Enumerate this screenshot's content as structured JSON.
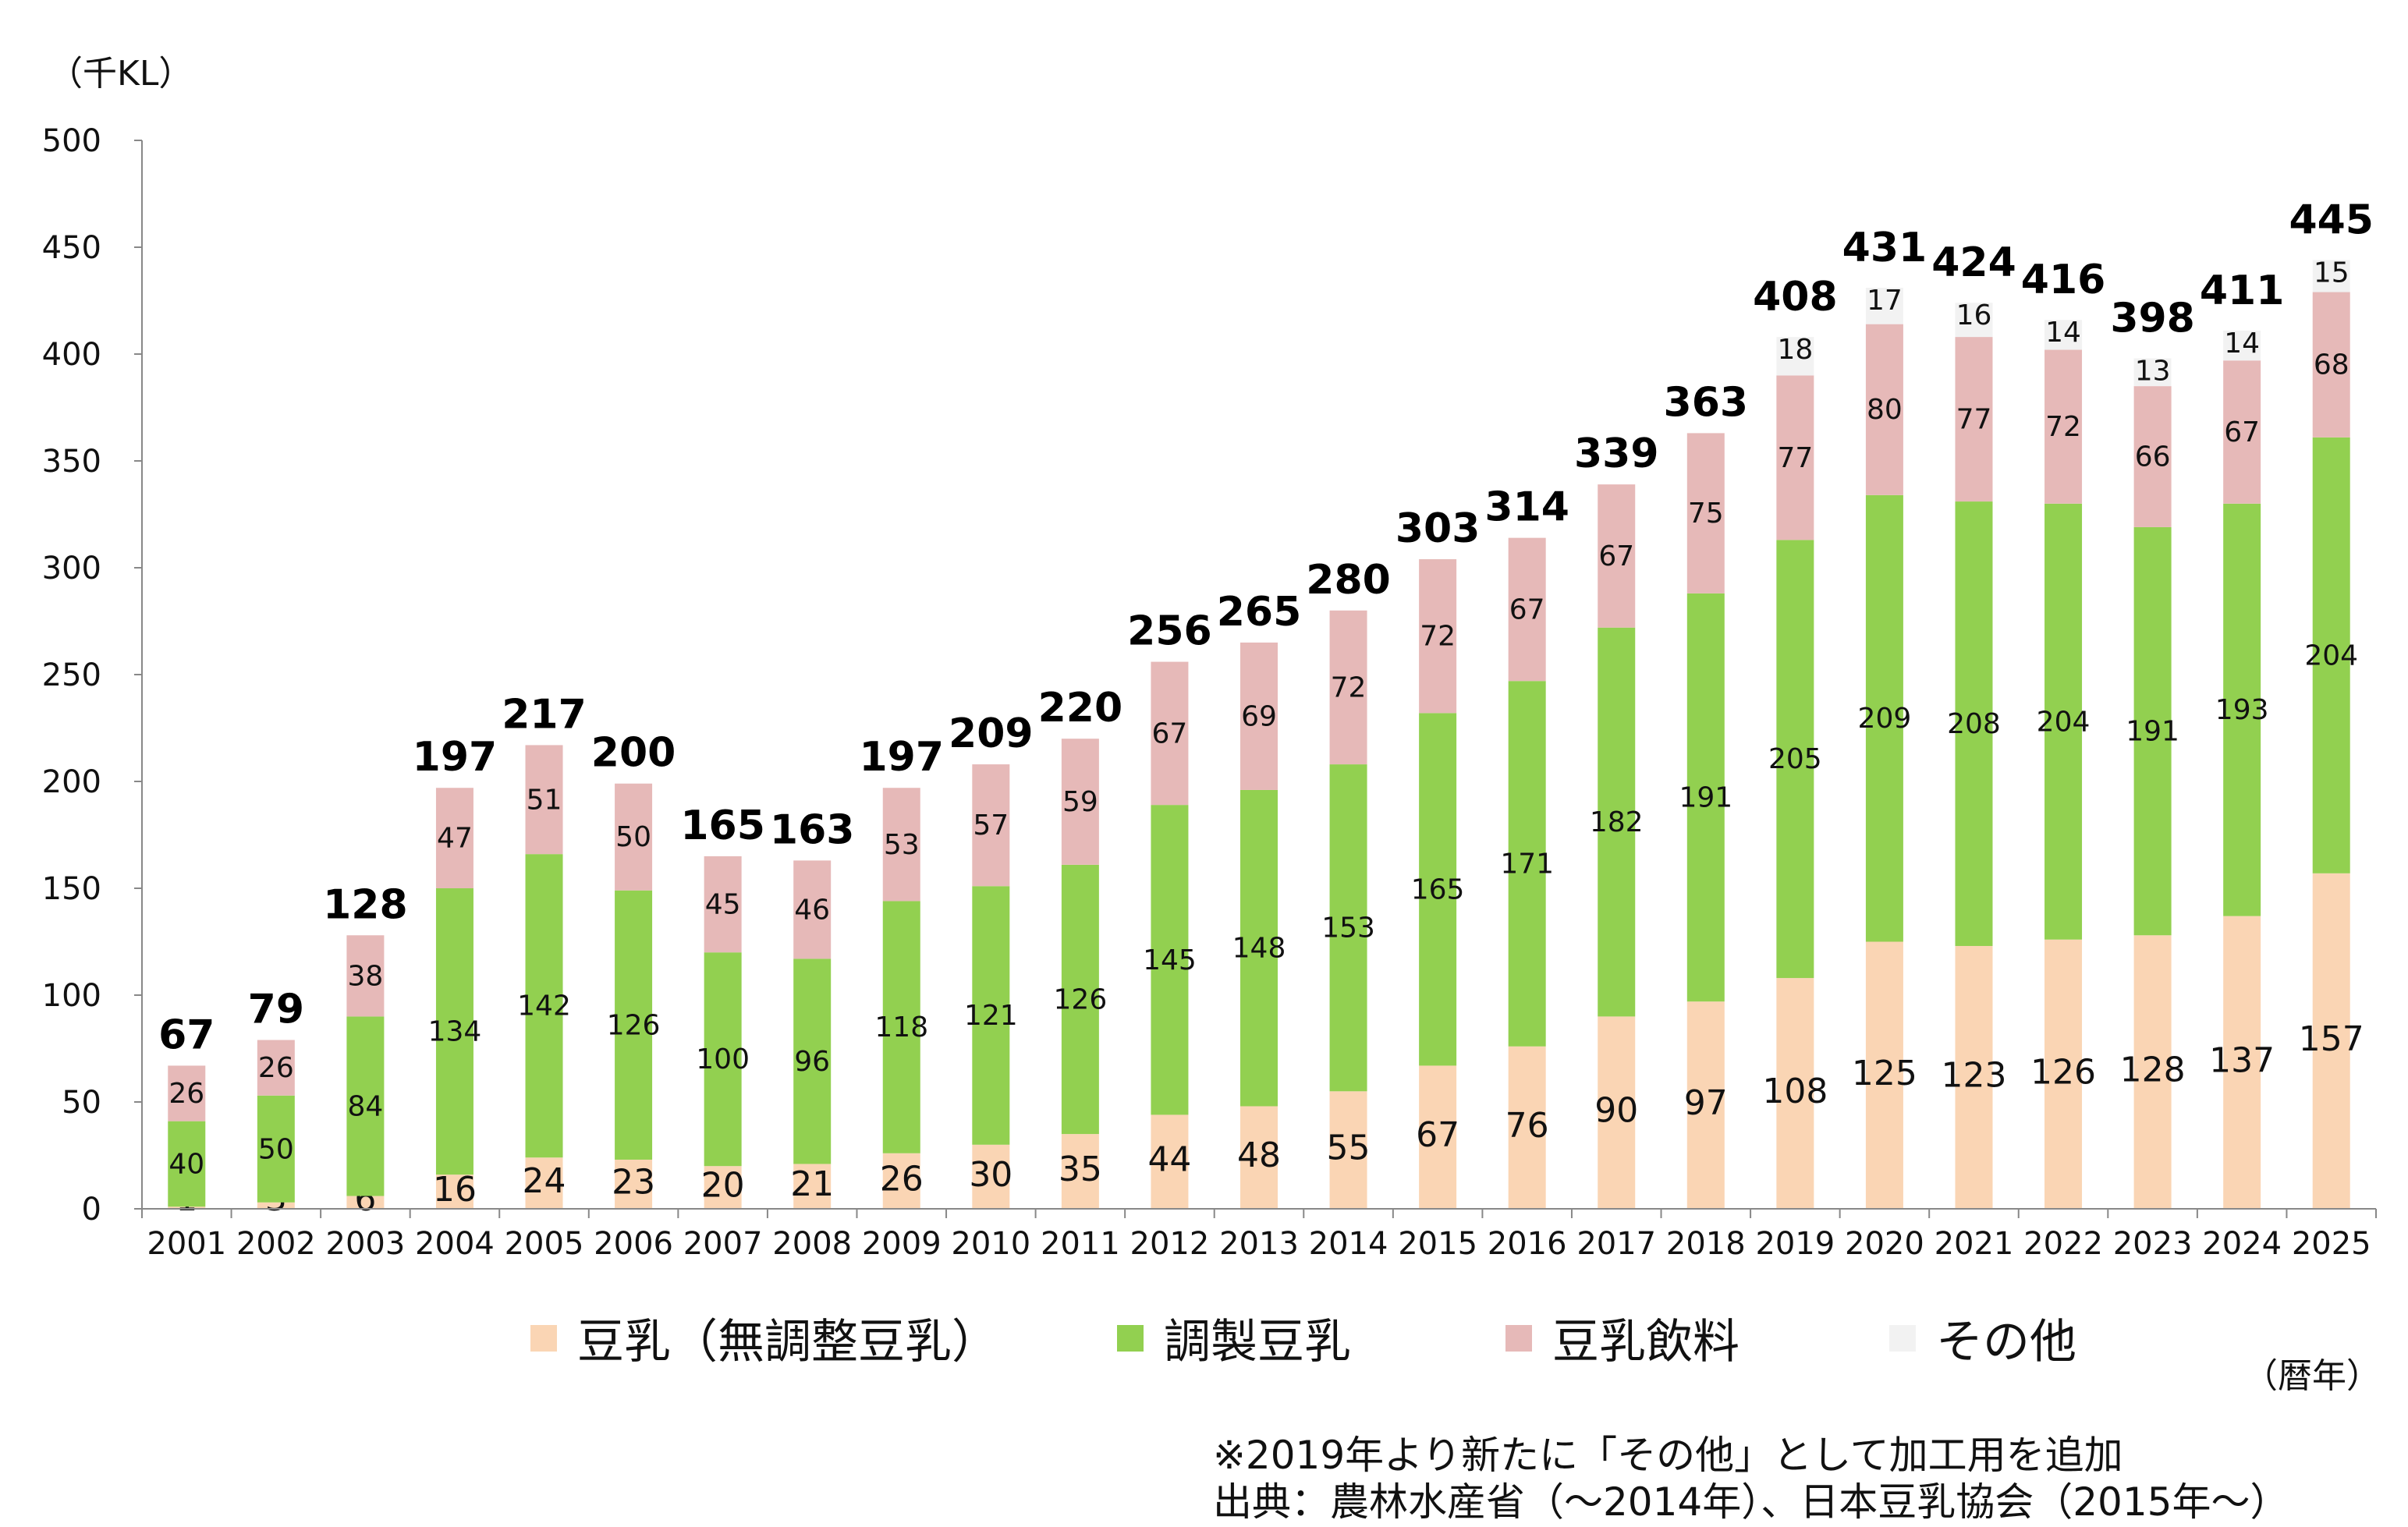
{
  "unit_label": "（千KL）",
  "x_unit_label": "（暦年）",
  "notes": [
    "※2019年より新たに「その他」として加工用を追加",
    "出典：農林水産省（～2014年）、日本豆乳協会（2015年～）"
  ],
  "chart_data": {
    "type": "bar",
    "stacked": true,
    "title": "",
    "xlabel": "",
    "ylabel": "",
    "ylim": [
      0,
      500
    ],
    "yticks": [
      0,
      50,
      100,
      150,
      200,
      250,
      300,
      350,
      400,
      450,
      500
    ],
    "grid": false,
    "legend_position": "bottom",
    "categories": [
      "2001",
      "2002",
      "2003",
      "2004",
      "2005",
      "2006",
      "2007",
      "2008",
      "2009",
      "2010",
      "2011",
      "2012",
      "2013",
      "2014",
      "2015",
      "2016",
      "2017",
      "2018",
      "2019",
      "2020",
      "2021",
      "2022",
      "2023",
      "2024",
      "2025"
    ],
    "series": [
      {
        "name": "豆乳（無調整豆乳）",
        "color": "#FAD5B4",
        "values": [
          1,
          3,
          6,
          16,
          24,
          23,
          20,
          21,
          26,
          30,
          35,
          44,
          48,
          55,
          67,
          76,
          90,
          97,
          108,
          125,
          123,
          126,
          128,
          137,
          157
        ]
      },
      {
        "name": "調製豆乳",
        "color": "#92D050",
        "values": [
          40,
          50,
          84,
          134,
          142,
          126,
          100,
          96,
          118,
          121,
          126,
          145,
          148,
          153,
          165,
          171,
          182,
          191,
          205,
          209,
          208,
          204,
          191,
          193,
          204
        ]
      },
      {
        "name": "豆乳飲料",
        "color": "#E6B9B8",
        "values": [
          26,
          26,
          38,
          47,
          51,
          50,
          45,
          46,
          53,
          57,
          59,
          67,
          69,
          72,
          72,
          67,
          67,
          75,
          77,
          80,
          77,
          72,
          66,
          67,
          68
        ]
      },
      {
        "name": "その他",
        "color": "#F2F2F2",
        "values": [
          null,
          null,
          null,
          null,
          null,
          null,
          null,
          null,
          null,
          null,
          null,
          null,
          null,
          null,
          null,
          null,
          null,
          null,
          18,
          17,
          16,
          14,
          13,
          14,
          15
        ]
      }
    ],
    "totals": [
      67,
      79,
      128,
      197,
      217,
      200,
      165,
      163,
      197,
      209,
      220,
      256,
      265,
      280,
      303,
      314,
      339,
      363,
      408,
      431,
      424,
      416,
      398,
      411,
      445
    ]
  }
}
